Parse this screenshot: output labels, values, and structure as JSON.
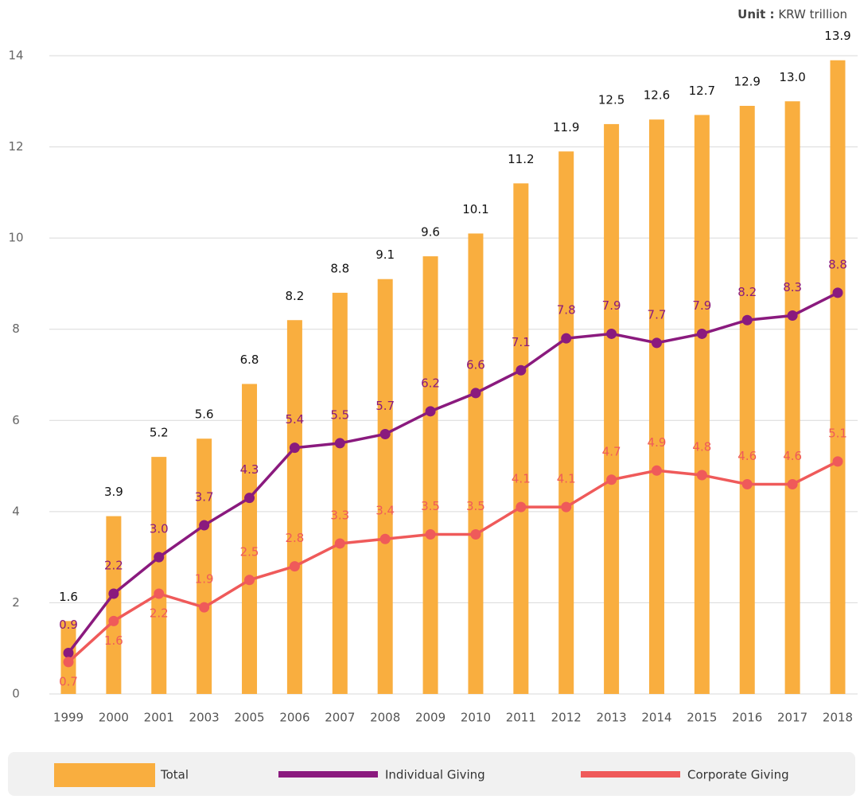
{
  "chart_data": {
    "type": "bar-line",
    "unit_label": "Unit :",
    "unit": "KRW trillion",
    "categories": [
      "1999",
      "2000",
      "2001",
      "2003",
      "2005",
      "2006",
      "2007",
      "2008",
      "2009",
      "2010",
      "2011",
      "2012",
      "2013",
      "2014",
      "2015",
      "2016",
      "2017",
      "2018"
    ],
    "series": [
      {
        "name": "Total",
        "type": "bar",
        "color": "#f9ae3f",
        "values": [
          1.6,
          3.9,
          5.2,
          5.6,
          6.8,
          8.2,
          8.8,
          9.1,
          9.6,
          10.1,
          11.2,
          11.9,
          12.5,
          12.6,
          12.7,
          12.9,
          13.0,
          13.9
        ],
        "value_labels": [
          "1.6",
          "3.9",
          "5.2",
          "5.6",
          "6.8",
          "8.2",
          "8.8",
          "9.1",
          "9.6",
          "10.1",
          "11.2",
          "11.9",
          "12.5",
          "12.6",
          "12.7",
          "12.9",
          "13.0",
          "13.9"
        ]
      },
      {
        "name": "Individual Giving",
        "type": "line",
        "color": "#8a1a7e",
        "values": [
          0.9,
          2.2,
          3.0,
          3.7,
          4.3,
          5.4,
          5.5,
          5.7,
          6.2,
          6.6,
          7.1,
          7.8,
          7.9,
          7.7,
          7.9,
          8.2,
          8.3,
          8.8
        ],
        "value_labels": [
          "0.9",
          "2.2",
          "3.0",
          "3.7",
          "4.3",
          "5.4",
          "5.5",
          "5.7",
          "6.2",
          "6.6",
          "7.1",
          "7.8",
          "7.9",
          "7.7",
          "7.9",
          "8.2",
          "8.3",
          "8.8"
        ]
      },
      {
        "name": "Corporate Giving",
        "type": "line",
        "color": "#ef5a5a",
        "values": [
          0.7,
          1.6,
          2.2,
          1.9,
          2.5,
          2.8,
          3.3,
          3.4,
          3.5,
          3.5,
          4.1,
          4.1,
          4.7,
          4.9,
          4.8,
          4.6,
          4.6,
          5.1
        ],
        "value_labels": [
          "0.7",
          "1.6",
          "2.2",
          "1.9",
          "2.5",
          "2.8",
          "3.3",
          "3.4",
          "3.5",
          "3.5",
          "4.1",
          "4.1",
          "4.7",
          "4.9",
          "4.8",
          "4.6",
          "4.6",
          "5.1"
        ]
      }
    ],
    "ylim": [
      0,
      14
    ],
    "yticks": [
      0,
      2,
      4,
      6,
      8,
      10,
      12,
      14
    ],
    "grid": true
  }
}
